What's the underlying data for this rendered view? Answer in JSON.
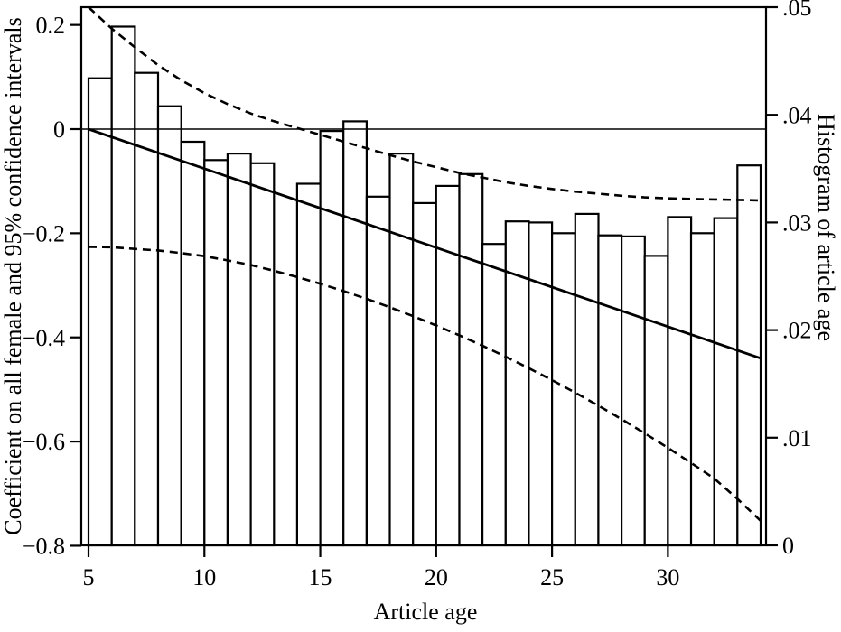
{
  "chart_data": {
    "type": "bar",
    "title": "",
    "xlabel": "Article age",
    "ylabel_left": "Coefficient on all female and 95% confidence intervals",
    "ylabel_right": "Histogram of article age",
    "x_axis": {
      "range": [
        4.7,
        34.2
      ],
      "ticks": [
        5,
        10,
        15,
        20,
        25,
        30
      ],
      "tick_labels": [
        "5",
        "10",
        "15",
        "20",
        "25",
        "30"
      ]
    },
    "left_axis": {
      "range": [
        -0.8,
        0.234
      ],
      "ticks": [
        0.2,
        0,
        -0.2,
        -0.4,
        -0.6,
        -0.8
      ],
      "tick_labels": [
        "0.2",
        "0",
        "−0.2",
        "−0.4",
        "−0.6",
        "−0.8"
      ]
    },
    "right_axis": {
      "range": [
        0,
        0.05
      ],
      "ticks": [
        0.05,
        0.04,
        0.03,
        0.02,
        0.01,
        0
      ],
      "tick_labels": [
        ".05",
        ".04",
        ".03",
        ".02",
        ".01",
        "0"
      ]
    },
    "grid": "off",
    "legend": "none",
    "zero_line": 0,
    "histogram": {
      "axis": "right",
      "bin_width": 1,
      "bin_start_ages": [
        5,
        6,
        7,
        8,
        9,
        10,
        11,
        12,
        13,
        14,
        15,
        16,
        17,
        18,
        19,
        20,
        21,
        22,
        23,
        24,
        25,
        26,
        27,
        28,
        29,
        30,
        31,
        32,
        33
      ],
      "densities": [
        0.0434,
        0.0482,
        0.0439,
        0.0408,
        0.0375,
        0.0358,
        0.0364,
        0.0355,
        0,
        0.0336,
        0.0385,
        0.0394,
        0.0324,
        0.0364,
        0.0318,
        0.0334,
        0.0345,
        0.028,
        0.0301,
        0.03,
        0.029,
        0.0308,
        0.0288,
        0.0287,
        0.0269,
        0.0305,
        0.029,
        0.0304,
        0.0353
      ]
    },
    "series": [
      {
        "name": "coefficient-trend",
        "style": "solid",
        "axis": "left",
        "points": [
          [
            5,
            0.0
          ],
          [
            34,
            -0.44
          ]
        ]
      },
      {
        "name": "upper-95-ci",
        "style": "dashed",
        "axis": "left",
        "points": [
          [
            5,
            0.234
          ],
          [
            6,
            0.193
          ],
          [
            7,
            0.157
          ],
          [
            8,
            0.123
          ],
          [
            9,
            0.094
          ],
          [
            10,
            0.069
          ],
          [
            11,
            0.048
          ],
          [
            12,
            0.03
          ],
          [
            13,
            0.015
          ],
          [
            14,
            0.002
          ],
          [
            15,
            -0.011
          ],
          [
            16,
            -0.024
          ],
          [
            17,
            -0.037
          ],
          [
            18,
            -0.05
          ],
          [
            19,
            -0.062
          ],
          [
            20,
            -0.073
          ],
          [
            21,
            -0.084
          ],
          [
            22,
            -0.093
          ],
          [
            23,
            -0.102
          ],
          [
            24,
            -0.109
          ],
          [
            25,
            -0.115
          ],
          [
            26,
            -0.12
          ],
          [
            27,
            -0.124
          ],
          [
            28,
            -0.128
          ],
          [
            29,
            -0.131
          ],
          [
            30,
            -0.133
          ],
          [
            31,
            -0.134
          ],
          [
            32,
            -0.135
          ],
          [
            33,
            -0.136
          ],
          [
            34,
            -0.137
          ]
        ]
      },
      {
        "name": "lower-95-ci",
        "style": "dashed",
        "axis": "left",
        "points": [
          [
            5,
            -0.226
          ],
          [
            6,
            -0.227
          ],
          [
            7,
            -0.23
          ],
          [
            8,
            -0.233
          ],
          [
            9,
            -0.238
          ],
          [
            10,
            -0.244
          ],
          [
            11,
            -0.252
          ],
          [
            12,
            -0.261
          ],
          [
            13,
            -0.272
          ],
          [
            14,
            -0.284
          ],
          [
            15,
            -0.297
          ],
          [
            16,
            -0.311
          ],
          [
            17,
            -0.326
          ],
          [
            18,
            -0.342
          ],
          [
            19,
            -0.359
          ],
          [
            20,
            -0.377
          ],
          [
            21,
            -0.396
          ],
          [
            22,
            -0.416
          ],
          [
            23,
            -0.437
          ],
          [
            24,
            -0.459
          ],
          [
            25,
            -0.482
          ],
          [
            26,
            -0.506
          ],
          [
            27,
            -0.531
          ],
          [
            28,
            -0.557
          ],
          [
            29,
            -0.584
          ],
          [
            30,
            -0.612
          ],
          [
            31,
            -0.641
          ],
          [
            32,
            -0.671
          ],
          [
            33,
            -0.71
          ],
          [
            34,
            -0.752
          ]
        ]
      }
    ],
    "colors": {
      "ink": "#000000",
      "bar_fill": "#ffffff",
      "background": "#ffffff"
    }
  }
}
